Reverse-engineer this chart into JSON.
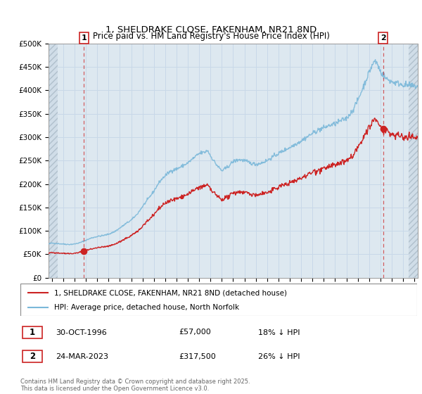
{
  "title": "1, SHELDRAKE CLOSE, FAKENHAM, NR21 8ND",
  "subtitle": "Price paid vs. HM Land Registry's House Price Index (HPI)",
  "ylim": [
    0,
    500000
  ],
  "xlim_start": 1993.7,
  "xlim_end": 2026.3,
  "yticks": [
    0,
    50000,
    100000,
    150000,
    200000,
    250000,
    300000,
    350000,
    400000,
    450000,
    500000
  ],
  "ytick_labels": [
    "£0",
    "£50K",
    "£100K",
    "£150K",
    "£200K",
    "£250K",
    "£300K",
    "£350K",
    "£400K",
    "£450K",
    "£500K"
  ],
  "hpi_color": "#7ab8d9",
  "price_color": "#cc2222",
  "marker1_date": 1996.83,
  "marker1_price": 57000,
  "marker1_label": "1",
  "marker2_date": 2023.23,
  "marker2_price": 317500,
  "marker2_label": "2",
  "legend_line1": "1, SHELDRAKE CLOSE, FAKENHAM, NR21 8ND (detached house)",
  "legend_line2": "HPI: Average price, detached house, North Norfolk",
  "note1_label": "1",
  "note1_date": "30-OCT-1996",
  "note1_price": "£57,000",
  "note1_hpi": "18% ↓ HPI",
  "note2_label": "2",
  "note2_date": "24-MAR-2023",
  "note2_price": "£317,500",
  "note2_hpi": "26% ↓ HPI",
  "copyright": "Contains HM Land Registry data © Crown copyright and database right 2025.\nThis data is licensed under the Open Government Licence v3.0.",
  "grid_color": "#c8d8e8",
  "plot_bg": "#dde8f0",
  "hatch_left_end": 1994.5,
  "hatch_right_start": 2025.5
}
